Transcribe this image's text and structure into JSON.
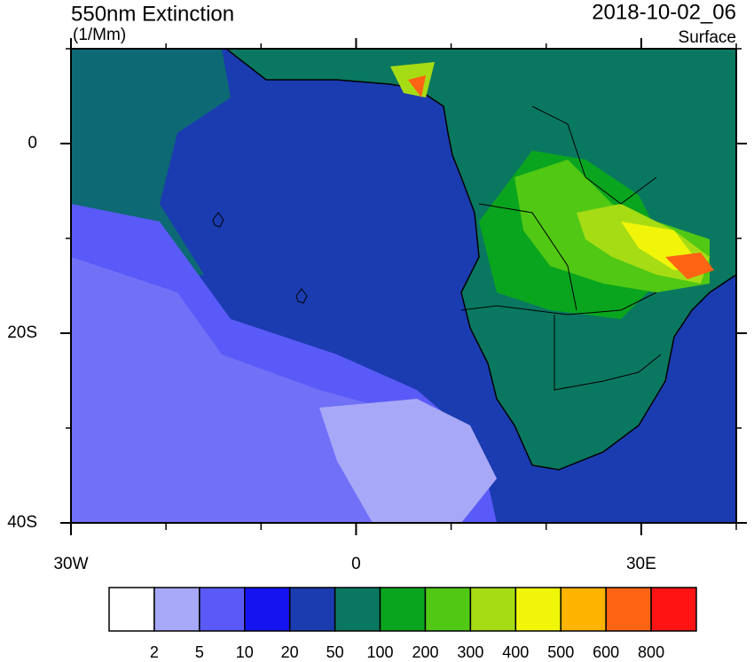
{
  "header": {
    "title": "550nm Extinction",
    "units": "(1/Mm)",
    "time": "2018-10-02_06",
    "level": "Surface"
  },
  "map": {
    "lonlim": [
      -30,
      40
    ],
    "latlim": [
      -40,
      10
    ],
    "lon_ticks": [
      {
        "value": -30,
        "label": "30W"
      },
      0,
      {
        "value": 30,
        "label": "30E"
      }
    ],
    "lon_minor_ticks": [
      -20,
      -10,
      10,
      20,
      40
    ],
    "lat_ticks": [
      0,
      {
        "value": -20,
        "label": "20S"
      },
      {
        "value": -40,
        "label": "40S"
      }
    ],
    "lat_minor_ticks": [
      10,
      -10,
      -30
    ]
  },
  "colorbar": {
    "levels": [
      2,
      5,
      10,
      20,
      50,
      100,
      200,
      300,
      400,
      500,
      600,
      800
    ],
    "colors": [
      "#ffffff",
      "#a8a8f8",
      "#5a5af8",
      "#1414f0",
      "#1a3cb0",
      "#0a7860",
      "#0aa51e",
      "#50c814",
      "#a6dc14",
      "#f0f50a",
      "#ffb400",
      "#ff6414",
      "#ff1414"
    ]
  }
}
